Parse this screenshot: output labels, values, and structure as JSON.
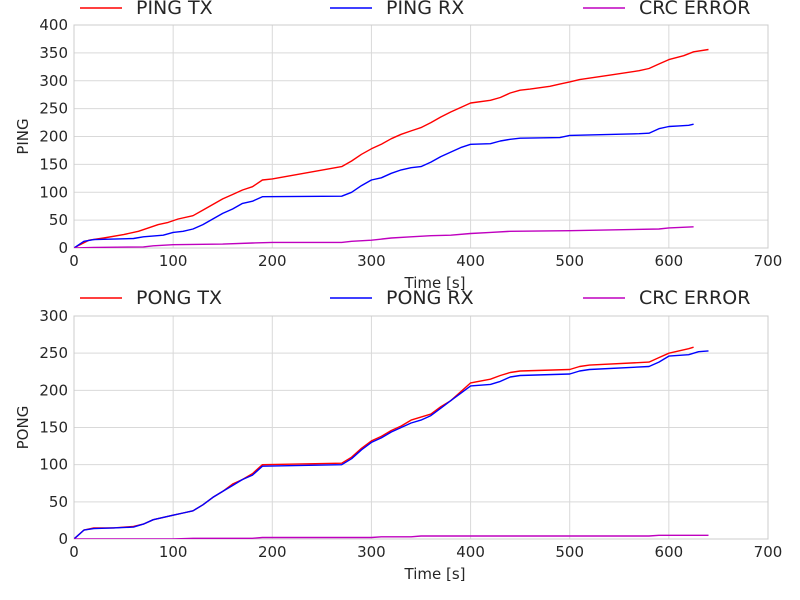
{
  "chart_data": [
    {
      "type": "line",
      "title": "",
      "xlabel": "Time [s]",
      "ylabel": "PING",
      "xlim": [
        0,
        700
      ],
      "ylim": [
        0,
        400
      ],
      "xticks": [
        0,
        100,
        200,
        300,
        400,
        500,
        600,
        700
      ],
      "yticks": [
        0,
        50,
        100,
        150,
        200,
        250,
        300,
        350,
        400
      ],
      "grid": true,
      "legend_position": "top",
      "series": [
        {
          "name": "PING TX",
          "color": "#ff0000",
          "points": [
            [
              0,
              0
            ],
            [
              5,
              5
            ],
            [
              15,
              14
            ],
            [
              30,
              18
            ],
            [
              50,
              24
            ],
            [
              65,
              30
            ],
            [
              75,
              36
            ],
            [
              85,
              42
            ],
            [
              95,
              46
            ],
            [
              105,
              52
            ],
            [
              120,
              58
            ],
            [
              130,
              68
            ],
            [
              140,
              78
            ],
            [
              150,
              88
            ],
            [
              160,
              96
            ],
            [
              170,
              104
            ],
            [
              180,
              110
            ],
            [
              190,
              122
            ],
            [
              200,
              124
            ],
            [
              270,
              146
            ],
            [
              280,
              156
            ],
            [
              290,
              168
            ],
            [
              300,
              178
            ],
            [
              310,
              186
            ],
            [
              320,
              196
            ],
            [
              330,
              204
            ],
            [
              340,
              210
            ],
            [
              350,
              216
            ],
            [
              360,
              225
            ],
            [
              370,
              235
            ],
            [
              380,
              244
            ],
            [
              390,
              252
            ],
            [
              400,
              260
            ],
            [
              420,
              265
            ],
            [
              430,
              270
            ],
            [
              440,
              278
            ],
            [
              450,
              283
            ],
            [
              460,
              285
            ],
            [
              480,
              290
            ],
            [
              490,
              294
            ],
            [
              500,
              298
            ],
            [
              510,
              302
            ],
            [
              540,
              310
            ],
            [
              570,
              318
            ],
            [
              580,
              322
            ],
            [
              590,
              330
            ],
            [
              600,
              338
            ],
            [
              615,
              345
            ],
            [
              625,
              352
            ],
            [
              640,
              356
            ]
          ]
        },
        {
          "name": "PING RX",
          "color": "#0000ff",
          "points": [
            [
              0,
              0
            ],
            [
              10,
              12
            ],
            [
              20,
              15
            ],
            [
              60,
              17
            ],
            [
              70,
              20
            ],
            [
              90,
              23
            ],
            [
              100,
              28
            ],
            [
              110,
              30
            ],
            [
              120,
              34
            ],
            [
              130,
              42
            ],
            [
              140,
              52
            ],
            [
              150,
              62
            ],
            [
              160,
              70
            ],
            [
              170,
              80
            ],
            [
              180,
              84
            ],
            [
              190,
              92
            ],
            [
              270,
              93
            ],
            [
              280,
              100
            ],
            [
              290,
              112
            ],
            [
              300,
              122
            ],
            [
              310,
              126
            ],
            [
              320,
              134
            ],
            [
              330,
              140
            ],
            [
              340,
              144
            ],
            [
              350,
              146
            ],
            [
              360,
              154
            ],
            [
              370,
              164
            ],
            [
              380,
              172
            ],
            [
              390,
              180
            ],
            [
              400,
              186
            ],
            [
              420,
              187
            ],
            [
              430,
              192
            ],
            [
              440,
              195
            ],
            [
              450,
              197
            ],
            [
              490,
              198
            ],
            [
              500,
              202
            ],
            [
              570,
              205
            ],
            [
              580,
              206
            ],
            [
              590,
              214
            ],
            [
              600,
              218
            ],
            [
              610,
              219
            ],
            [
              620,
              220
            ],
            [
              625,
              222
            ]
          ]
        },
        {
          "name": "CRC ERROR",
          "color": "#bf00bf",
          "points": [
            [
              0,
              0
            ],
            [
              20,
              1
            ],
            [
              70,
              2
            ],
            [
              80,
              4
            ],
            [
              100,
              6
            ],
            [
              150,
              7
            ],
            [
              180,
              9
            ],
            [
              200,
              10
            ],
            [
              270,
              10
            ],
            [
              280,
              12
            ],
            [
              300,
              14
            ],
            [
              320,
              18
            ],
            [
              340,
              20
            ],
            [
              360,
              22
            ],
            [
              380,
              23
            ],
            [
              400,
              26
            ],
            [
              420,
              28
            ],
            [
              440,
              30
            ],
            [
              500,
              31
            ],
            [
              560,
              33
            ],
            [
              590,
              34
            ],
            [
              600,
              36
            ],
            [
              625,
              38
            ]
          ]
        }
      ]
    },
    {
      "type": "line",
      "title": "",
      "xlabel": "Time [s]",
      "ylabel": "PONG",
      "xlim": [
        0,
        700
      ],
      "ylim": [
        0,
        300
      ],
      "xticks": [
        0,
        100,
        200,
        300,
        400,
        500,
        600,
        700
      ],
      "yticks": [
        0,
        50,
        100,
        150,
        200,
        250,
        300
      ],
      "grid": true,
      "legend_position": "top",
      "series": [
        {
          "name": "PONG TX",
          "color": "#ff0000",
          "points": [
            [
              0,
              0
            ],
            [
              10,
              12
            ],
            [
              20,
              15
            ],
            [
              40,
              15
            ],
            [
              60,
              17
            ],
            [
              70,
              20
            ],
            [
              80,
              26
            ],
            [
              100,
              32
            ],
            [
              110,
              35
            ],
            [
              120,
              38
            ],
            [
              130,
              46
            ],
            [
              140,
              56
            ],
            [
              150,
              64
            ],
            [
              160,
              74
            ],
            [
              170,
              80
            ],
            [
              180,
              88
            ],
            [
              190,
              100
            ],
            [
              270,
              102
            ],
            [
              280,
              110
            ],
            [
              290,
              122
            ],
            [
              300,
              132
            ],
            [
              310,
              138
            ],
            [
              320,
              146
            ],
            [
              330,
              152
            ],
            [
              340,
              160
            ],
            [
              350,
              164
            ],
            [
              360,
              168
            ],
            [
              370,
              178
            ],
            [
              380,
              186
            ],
            [
              390,
              198
            ],
            [
              400,
              210
            ],
            [
              420,
              215
            ],
            [
              430,
              220
            ],
            [
              440,
              224
            ],
            [
              450,
              226
            ],
            [
              500,
              228
            ],
            [
              510,
              232
            ],
            [
              520,
              234
            ],
            [
              580,
              238
            ],
            [
              590,
              244
            ],
            [
              600,
              250
            ],
            [
              620,
              256
            ],
            [
              625,
              258
            ]
          ]
        },
        {
          "name": "PONG RX",
          "color": "#0000ff",
          "points": [
            [
              0,
              0
            ],
            [
              10,
              12
            ],
            [
              20,
              14
            ],
            [
              40,
              15
            ],
            [
              60,
              16
            ],
            [
              70,
              20
            ],
            [
              80,
              26
            ],
            [
              100,
              32
            ],
            [
              110,
              35
            ],
            [
              120,
              38
            ],
            [
              130,
              46
            ],
            [
              140,
              56
            ],
            [
              150,
              64
            ],
            [
              160,
              72
            ],
            [
              170,
              80
            ],
            [
              180,
              86
            ],
            [
              190,
              98
            ],
            [
              270,
              100
            ],
            [
              280,
              108
            ],
            [
              290,
              120
            ],
            [
              300,
              130
            ],
            [
              310,
              136
            ],
            [
              320,
              144
            ],
            [
              330,
              150
            ],
            [
              340,
              156
            ],
            [
              350,
              160
            ],
            [
              360,
              166
            ],
            [
              370,
              176
            ],
            [
              380,
              186
            ],
            [
              390,
              196
            ],
            [
              400,
              206
            ],
            [
              420,
              208
            ],
            [
              430,
              212
            ],
            [
              440,
              218
            ],
            [
              450,
              220
            ],
            [
              500,
              222
            ],
            [
              510,
              226
            ],
            [
              520,
              228
            ],
            [
              580,
              232
            ],
            [
              590,
              238
            ],
            [
              600,
              246
            ],
            [
              620,
              248
            ],
            [
              630,
              252
            ],
            [
              640,
              253
            ]
          ]
        },
        {
          "name": "CRC ERROR",
          "color": "#bf00bf",
          "points": [
            [
              0,
              0
            ],
            [
              100,
              0
            ],
            [
              120,
              1
            ],
            [
              180,
              1
            ],
            [
              190,
              2
            ],
            [
              300,
              2
            ],
            [
              310,
              3
            ],
            [
              340,
              3
            ],
            [
              350,
              4
            ],
            [
              580,
              4
            ],
            [
              590,
              5
            ],
            [
              640,
              5
            ]
          ]
        }
      ]
    }
  ]
}
